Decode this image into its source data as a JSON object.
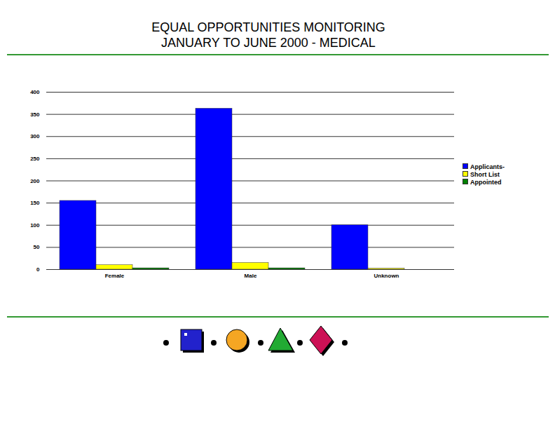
{
  "chart_data": {
    "type": "bar",
    "title": "EQUAL OPPORTUNITIES MONITORING",
    "subtitle": "JANUARY TO JUNE 2000 - MEDICAL",
    "categories": [
      "Female",
      "Male",
      "Unknown"
    ],
    "series": [
      {
        "name": "Applicants-",
        "color": "#0000ff",
        "values": [
          155,
          363,
          100
        ]
      },
      {
        "name": "Short List",
        "color": "#ffff00",
        "values": [
          10,
          15,
          2
        ]
      },
      {
        "name": "Appointed",
        "color": "#008000",
        "values": [
          3,
          3,
          0
        ]
      }
    ],
    "ylim": [
      0,
      400
    ],
    "yticks": [
      0,
      50,
      100,
      150,
      200,
      250,
      300,
      350,
      400
    ],
    "grid": true,
    "legend": "right"
  }
}
